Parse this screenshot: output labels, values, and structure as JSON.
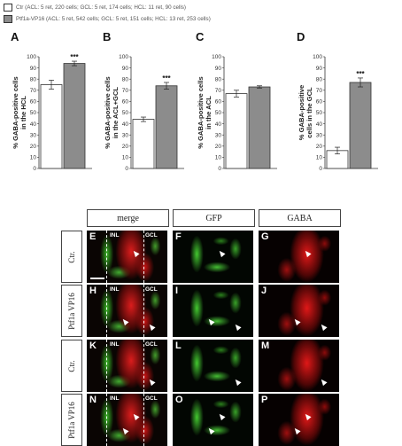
{
  "legend": [
    {
      "label": "Ctr (ACL: 5 ret, 220 cells; GCL: 5 ret, 174 cells; HCL: 11 ret, 90 cells)",
      "color": "#ffffff"
    },
    {
      "label": "Ptf1a-VP16 (ACL: 5 ret, 542 cells; GCL: 5 ret, 151 cells; HCL: 13 ret, 253 cells)",
      "color": "#8c8c8c"
    }
  ],
  "chart_data": [
    {
      "type": "bar",
      "letter": "A",
      "ylabel": [
        "% GABA-positive cells",
        "in the HCL"
      ],
      "ylim": [
        0,
        100
      ],
      "yticks": [
        0,
        10,
        20,
        30,
        40,
        50,
        60,
        70,
        80,
        90,
        100
      ],
      "values": [
        75,
        94
      ],
      "errors": [
        4,
        2
      ],
      "significance": "***"
    },
    {
      "type": "bar",
      "letter": "B",
      "ylabel": [
        "% GABA-positive cells",
        "in the ACL+GCL"
      ],
      "ylim": [
        0,
        100
      ],
      "yticks": [
        0,
        10,
        20,
        30,
        40,
        50,
        60,
        70,
        80,
        90,
        100
      ],
      "values": [
        44,
        74
      ],
      "errors": [
        2,
        3
      ],
      "significance": "***"
    },
    {
      "type": "bar",
      "letter": "C",
      "ylabel": [
        "% GABA-positive cells",
        "in the ACL"
      ],
      "ylim": [
        0,
        100
      ],
      "yticks": [
        0,
        10,
        20,
        30,
        40,
        50,
        60,
        70,
        80,
        90,
        100
      ],
      "values": [
        67,
        73
      ],
      "errors": [
        3,
        1
      ],
      "significance": ""
    },
    {
      "type": "bar",
      "letter": "D",
      "ylabel": [
        "% GABA-positive",
        "cells in the GCL"
      ],
      "ylim": [
        0,
        100
      ],
      "yticks": [
        0,
        10,
        20,
        30,
        40,
        50,
        60,
        70,
        80,
        90,
        100
      ],
      "values": [
        16,
        77
      ],
      "errors": [
        3,
        4
      ],
      "significance": "***"
    }
  ],
  "micro": {
    "columns": [
      "merge",
      "GFP",
      "GABA"
    ],
    "rows": [
      {
        "label": "Ctr.",
        "panels": [
          "E",
          "F",
          "G"
        ],
        "inl": "INL",
        "gcl": "GCL"
      },
      {
        "label": "Ptf1a VP16",
        "panels": [
          "H",
          "I",
          "J"
        ],
        "inl": "INL",
        "gcl": "GCL"
      },
      {
        "label": "Ctr.",
        "panels": [
          "K",
          "L",
          "M"
        ],
        "inl": "INL",
        "gcl": "GCL"
      },
      {
        "label": "Ptf1a VP16",
        "panels": [
          "N",
          "O",
          "P"
        ],
        "inl": "INL",
        "gcl": "GCL"
      }
    ]
  }
}
